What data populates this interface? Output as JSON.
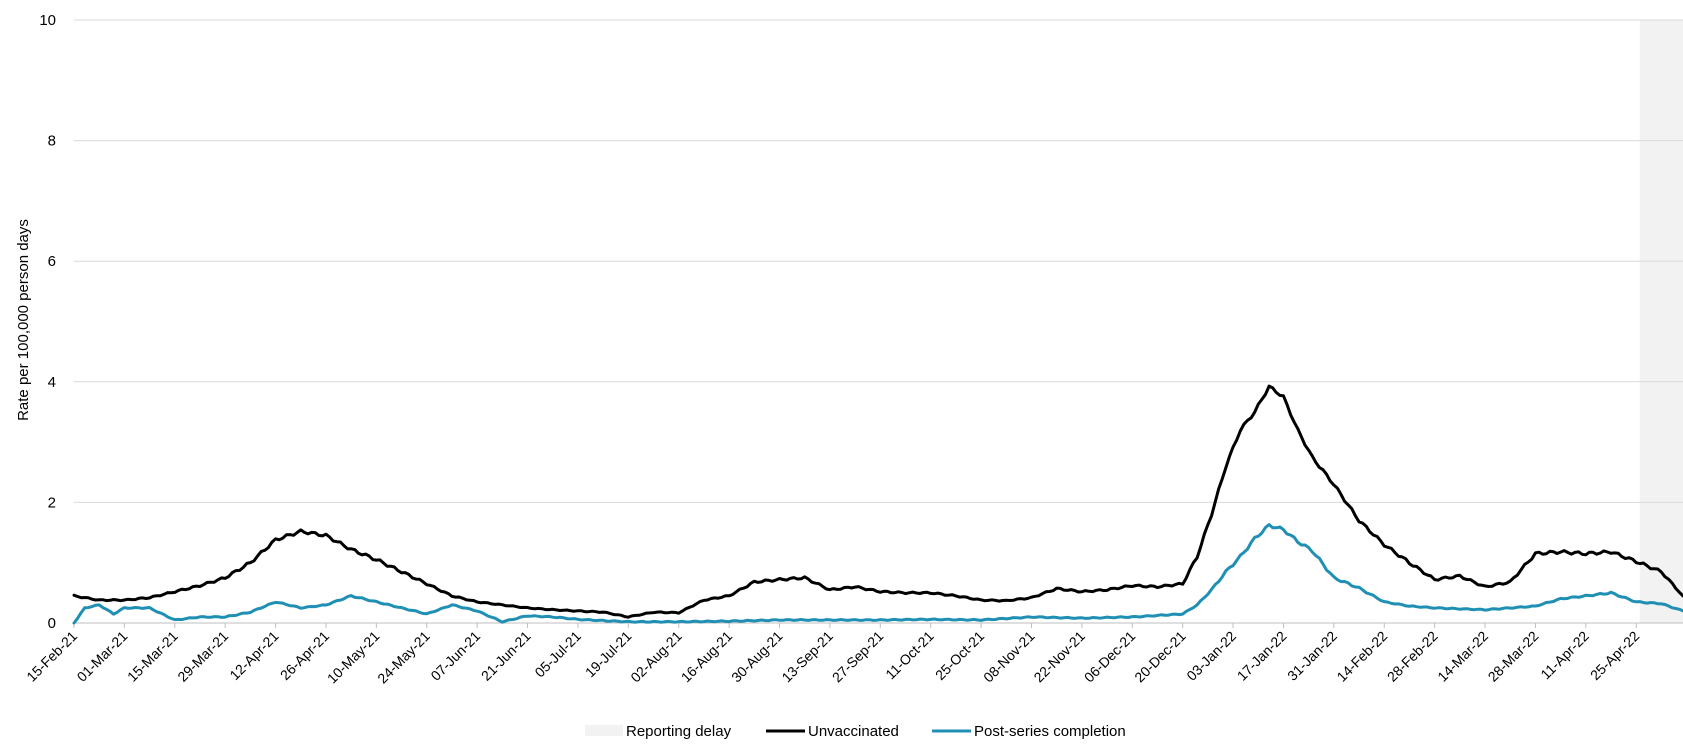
{
  "chart_data": {
    "type": "line",
    "title": "",
    "xlabel": "",
    "ylabel": "Rate per 100,000 person days",
    "ylim": [
      0,
      10
    ],
    "yticks": [
      0,
      2,
      4,
      6,
      8,
      10
    ],
    "xlim": [
      "2021-02-15",
      "2022-05-08"
    ],
    "x_tick_labels": [
      "15-Feb-21",
      "01-Mar-21",
      "15-Mar-21",
      "29-Mar-21",
      "12-Apr-21",
      "26-Apr-21",
      "10-May-21",
      "24-May-21",
      "07-Jun-21",
      "21-Jun-21",
      "05-Jul-21",
      "19-Jul-21",
      "02-Aug-21",
      "16-Aug-21",
      "30-Aug-21",
      "13-Sep-21",
      "27-Sep-21",
      "11-Oct-21",
      "25-Oct-21",
      "08-Nov-21",
      "22-Nov-21",
      "06-Dec-21",
      "20-Dec-21",
      "03-Jan-22",
      "17-Jan-22",
      "31-Jan-22",
      "14-Feb-22",
      "28-Feb-22",
      "14-Mar-22",
      "28-Mar-22",
      "11-Apr-22",
      "25-Apr-22"
    ],
    "x_tick_dates": [
      "2021-02-15",
      "2021-03-01",
      "2021-03-15",
      "2021-03-29",
      "2021-04-12",
      "2021-04-26",
      "2021-05-10",
      "2021-05-24",
      "2021-06-07",
      "2021-06-21",
      "2021-07-05",
      "2021-07-19",
      "2021-08-02",
      "2021-08-16",
      "2021-08-30",
      "2021-09-13",
      "2021-09-27",
      "2021-10-11",
      "2021-10-25",
      "2021-11-08",
      "2021-11-22",
      "2021-12-06",
      "2021-12-20",
      "2022-01-03",
      "2022-01-17",
      "2022-01-31",
      "2022-02-14",
      "2022-02-28",
      "2022-03-14",
      "2022-03-28",
      "2022-04-11",
      "2022-04-25"
    ],
    "grid": "horizontal",
    "legend_position": "bottom-center",
    "shaded_region": {
      "name": "Reporting delay",
      "start": "2022-04-26",
      "end": "2022-05-08",
      "color": "#f2f2f2"
    },
    "series": [
      {
        "name": "Unvaccinated",
        "color": "#000000",
        "points": [
          [
            "2021-02-15",
            0.45
          ],
          [
            "2021-02-22",
            0.38
          ],
          [
            "2021-03-01",
            0.38
          ],
          [
            "2021-03-08",
            0.42
          ],
          [
            "2021-03-15",
            0.52
          ],
          [
            "2021-03-22",
            0.62
          ],
          [
            "2021-03-29",
            0.75
          ],
          [
            "2021-04-05",
            1.0
          ],
          [
            "2021-04-12",
            1.38
          ],
          [
            "2021-04-19",
            1.52
          ],
          [
            "2021-04-26",
            1.45
          ],
          [
            "2021-05-03",
            1.22
          ],
          [
            "2021-05-10",
            1.05
          ],
          [
            "2021-05-17",
            0.85
          ],
          [
            "2021-05-24",
            0.65
          ],
          [
            "2021-05-31",
            0.45
          ],
          [
            "2021-06-07",
            0.35
          ],
          [
            "2021-06-14",
            0.3
          ],
          [
            "2021-06-21",
            0.25
          ],
          [
            "2021-06-28",
            0.22
          ],
          [
            "2021-07-05",
            0.2
          ],
          [
            "2021-07-12",
            0.18
          ],
          [
            "2021-07-19",
            0.1
          ],
          [
            "2021-07-26",
            0.18
          ],
          [
            "2021-08-02",
            0.17
          ],
          [
            "2021-08-09",
            0.38
          ],
          [
            "2021-08-16",
            0.45
          ],
          [
            "2021-08-23",
            0.68
          ],
          [
            "2021-08-30",
            0.72
          ],
          [
            "2021-09-06",
            0.75
          ],
          [
            "2021-09-13",
            0.55
          ],
          [
            "2021-09-20",
            0.6
          ],
          [
            "2021-09-27",
            0.52
          ],
          [
            "2021-10-04",
            0.5
          ],
          [
            "2021-10-11",
            0.5
          ],
          [
            "2021-10-18",
            0.45
          ],
          [
            "2021-10-25",
            0.38
          ],
          [
            "2021-11-01",
            0.37
          ],
          [
            "2021-11-08",
            0.42
          ],
          [
            "2021-11-15",
            0.57
          ],
          [
            "2021-11-22",
            0.52
          ],
          [
            "2021-11-29",
            0.55
          ],
          [
            "2021-12-06",
            0.62
          ],
          [
            "2021-12-13",
            0.6
          ],
          [
            "2021-12-20",
            0.65
          ],
          [
            "2021-12-24",
            1.1
          ],
          [
            "2021-12-28",
            1.8
          ],
          [
            "2022-01-01",
            2.6
          ],
          [
            "2022-01-05",
            3.2
          ],
          [
            "2022-01-09",
            3.5
          ],
          [
            "2022-01-13",
            3.92
          ],
          [
            "2022-01-17",
            3.75
          ],
          [
            "2022-01-21",
            3.2
          ],
          [
            "2022-01-25",
            2.75
          ],
          [
            "2022-01-31",
            2.3
          ],
          [
            "2022-02-07",
            1.7
          ],
          [
            "2022-02-14",
            1.3
          ],
          [
            "2022-02-21",
            1.0
          ],
          [
            "2022-02-28",
            0.72
          ],
          [
            "2022-03-07",
            0.78
          ],
          [
            "2022-03-14",
            0.6
          ],
          [
            "2022-03-21",
            0.68
          ],
          [
            "2022-03-28",
            1.15
          ],
          [
            "2022-04-04",
            1.18
          ],
          [
            "2022-04-11",
            1.15
          ],
          [
            "2022-04-18",
            1.18
          ],
          [
            "2022-04-25",
            1.02
          ],
          [
            "2022-05-02",
            0.85
          ],
          [
            "2022-05-08",
            0.45
          ]
        ]
      },
      {
        "name": "Post-series completion",
        "color": "#1f8fb4",
        "points": [
          [
            "2021-02-15",
            0.0
          ],
          [
            "2021-02-18",
            0.25
          ],
          [
            "2021-02-22",
            0.3
          ],
          [
            "2021-02-26",
            0.15
          ],
          [
            "2021-03-01",
            0.25
          ],
          [
            "2021-03-08",
            0.25
          ],
          [
            "2021-03-15",
            0.05
          ],
          [
            "2021-03-22",
            0.1
          ],
          [
            "2021-03-29",
            0.1
          ],
          [
            "2021-04-05",
            0.18
          ],
          [
            "2021-04-12",
            0.35
          ],
          [
            "2021-04-19",
            0.25
          ],
          [
            "2021-04-26",
            0.3
          ],
          [
            "2021-05-03",
            0.45
          ],
          [
            "2021-05-10",
            0.35
          ],
          [
            "2021-05-17",
            0.25
          ],
          [
            "2021-05-24",
            0.15
          ],
          [
            "2021-05-31",
            0.3
          ],
          [
            "2021-06-07",
            0.2
          ],
          [
            "2021-06-14",
            0.02
          ],
          [
            "2021-06-21",
            0.12
          ],
          [
            "2021-06-28",
            0.1
          ],
          [
            "2021-07-05",
            0.06
          ],
          [
            "2021-07-12",
            0.04
          ],
          [
            "2021-07-19",
            0.02
          ],
          [
            "2021-08-02",
            0.02
          ],
          [
            "2021-08-16",
            0.03
          ],
          [
            "2021-08-30",
            0.05
          ],
          [
            "2021-09-13",
            0.05
          ],
          [
            "2021-09-27",
            0.05
          ],
          [
            "2021-10-11",
            0.06
          ],
          [
            "2021-10-25",
            0.05
          ],
          [
            "2021-11-08",
            0.1
          ],
          [
            "2021-11-22",
            0.08
          ],
          [
            "2021-12-06",
            0.1
          ],
          [
            "2021-12-20",
            0.15
          ],
          [
            "2021-12-24",
            0.3
          ],
          [
            "2021-12-28",
            0.55
          ],
          [
            "2022-01-01",
            0.85
          ],
          [
            "2022-01-05",
            1.1
          ],
          [
            "2022-01-09",
            1.4
          ],
          [
            "2022-01-13",
            1.62
          ],
          [
            "2022-01-17",
            1.55
          ],
          [
            "2022-01-21",
            1.35
          ],
          [
            "2022-01-25",
            1.2
          ],
          [
            "2022-01-31",
            0.75
          ],
          [
            "2022-02-07",
            0.58
          ],
          [
            "2022-02-14",
            0.35
          ],
          [
            "2022-02-21",
            0.28
          ],
          [
            "2022-02-28",
            0.25
          ],
          [
            "2022-03-14",
            0.22
          ],
          [
            "2022-03-28",
            0.28
          ],
          [
            "2022-04-04",
            0.4
          ],
          [
            "2022-04-11",
            0.45
          ],
          [
            "2022-04-18",
            0.5
          ],
          [
            "2022-04-25",
            0.35
          ],
          [
            "2022-05-02",
            0.32
          ],
          [
            "2022-05-08",
            0.2
          ]
        ]
      }
    ]
  }
}
